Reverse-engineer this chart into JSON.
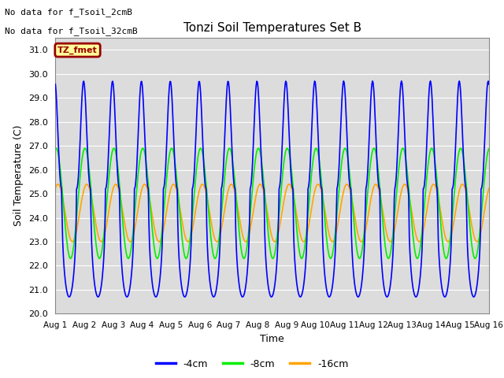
{
  "title": "Tonzi Soil Temperatures Set B",
  "ylabel": "Soil Temperature (C)",
  "xlabel": "Time",
  "ylim": [
    20.0,
    31.5
  ],
  "annotation_lines": [
    "No data for f_Tsoil_2cmB",
    "No data for f_Tsoil_32cmB"
  ],
  "legend_box_label": "TZ_fmet",
  "legend_box_facecolor": "#FFFF99",
  "legend_box_edgecolor": "#990000",
  "legend_box_textcolor": "#990000",
  "bg_color": "#DCDCDC",
  "fig_color": "#FFFFFF",
  "xtick_labels": [
    "Aug 1",
    "Aug 2",
    "Aug 3",
    "Aug 4",
    "Aug 5",
    "Aug 6",
    "Aug 7",
    "Aug 8",
    "Aug 9",
    "Aug 10",
    "Aug 11",
    "Aug 12",
    "Aug 13",
    "Aug 14",
    "Aug 15",
    "Aug 16"
  ],
  "series": [
    {
      "label": "-4cm",
      "color": "#0000FF",
      "lw": 1.2
    },
    {
      "label": "-8cm",
      "color": "#00EE00",
      "lw": 1.2
    },
    {
      "label": "-16cm",
      "color": "#FFA500",
      "lw": 1.2
    }
  ],
  "grid_color": "#FFFFFF",
  "ytick_vals": [
    20.0,
    21.0,
    22.0,
    23.0,
    24.0,
    25.0,
    26.0,
    27.0,
    28.0,
    29.0,
    30.0,
    31.0
  ]
}
